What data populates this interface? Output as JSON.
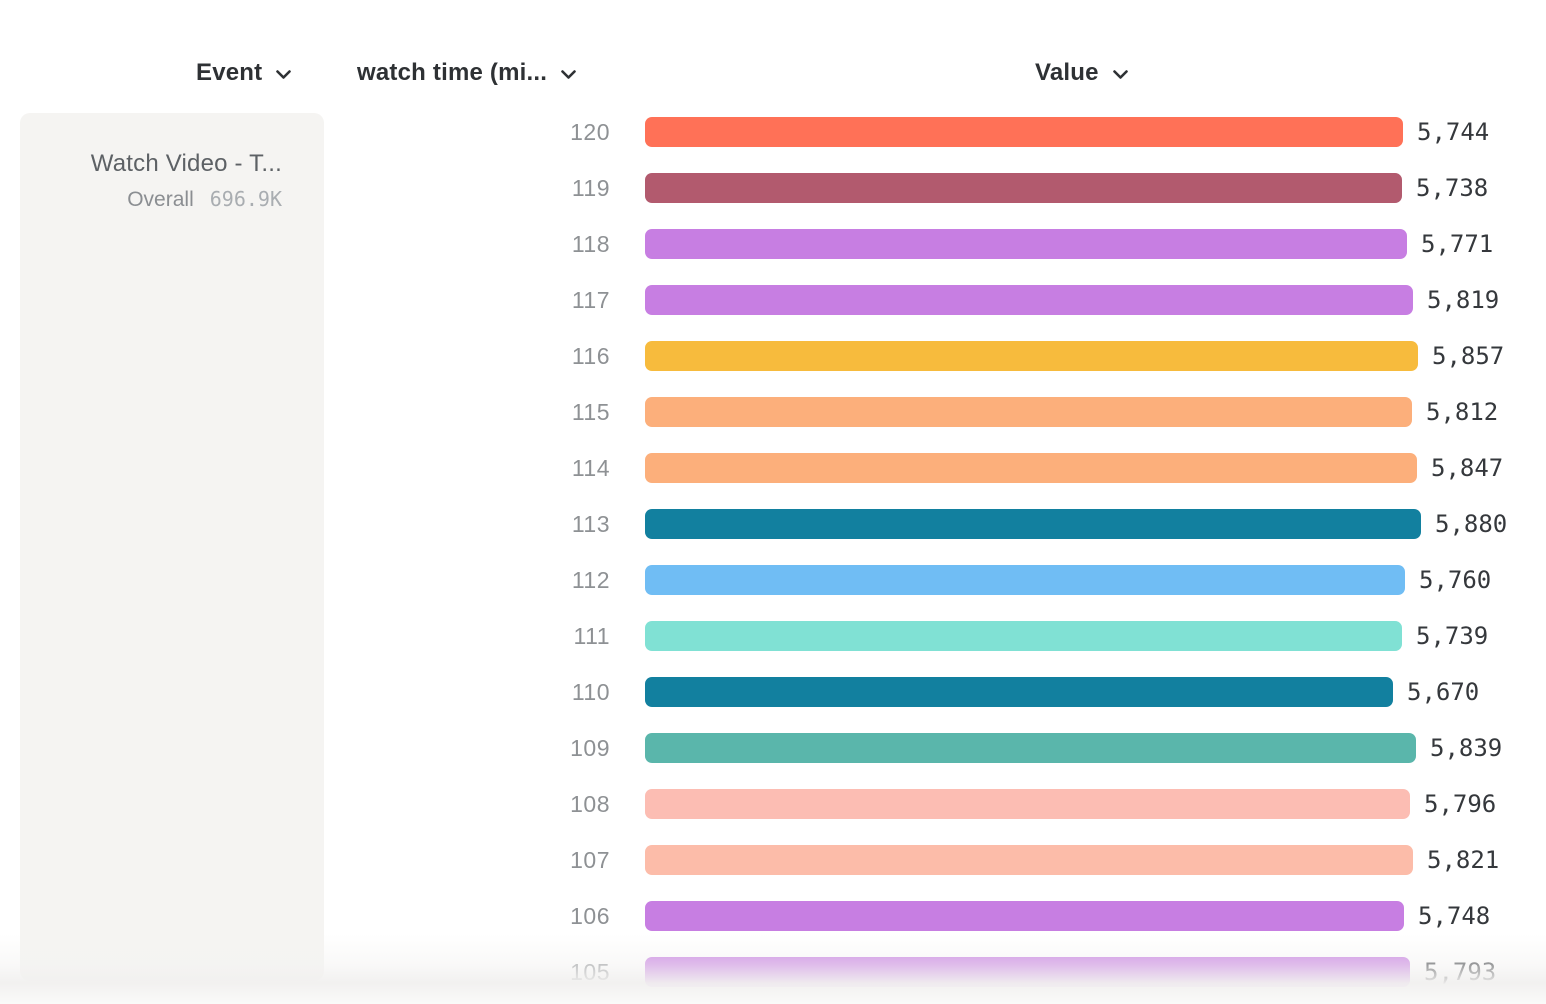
{
  "header": {
    "event_label": "Event",
    "watch_time_label": "watch time (mi...",
    "value_label": "Value"
  },
  "event_card": {
    "title": "Watch Video - T...",
    "overall_label": "Overall",
    "overall_value": "696.9K"
  },
  "chart_data": {
    "type": "bar",
    "orientation": "horizontal",
    "title": "",
    "xlabel": "Value",
    "ylabel": "watch time (mi...",
    "xlim": [
      0,
      5880
    ],
    "grid": false,
    "legend": false,
    "categories": [
      "120",
      "119",
      "118",
      "117",
      "116",
      "115",
      "114",
      "113",
      "112",
      "111",
      "110",
      "109",
      "108",
      "107",
      "106",
      "105"
    ],
    "values": [
      5744,
      5738,
      5771,
      5819,
      5857,
      5812,
      5847,
      5880,
      5760,
      5739,
      5670,
      5839,
      5796,
      5821,
      5748,
      5793
    ],
    "value_labels": [
      "5,744",
      "5,738",
      "5,771",
      "5,819",
      "5,857",
      "5,812",
      "5,847",
      "5,880",
      "5,760",
      "5,739",
      "5,670",
      "5,839",
      "5,796",
      "5,821",
      "5,748",
      "5,793"
    ],
    "colors": [
      "#FF7157",
      "#B25A6E",
      "#C77EE2",
      "#C77EE2",
      "#F7BB3D",
      "#FCAF7B",
      "#FCAF7B",
      "#12809F",
      "#70BDF4",
      "#80E1D4",
      "#12809F",
      "#5AB6AB",
      "#FCBDB3",
      "#FCBCA9",
      "#C77EE2",
      "#C77EE2"
    ]
  },
  "colors": {
    "card_background": "#f5f4f2",
    "category_label": "#8e9194",
    "value_label": "#35383c",
    "header_text": "#2e3134"
  }
}
